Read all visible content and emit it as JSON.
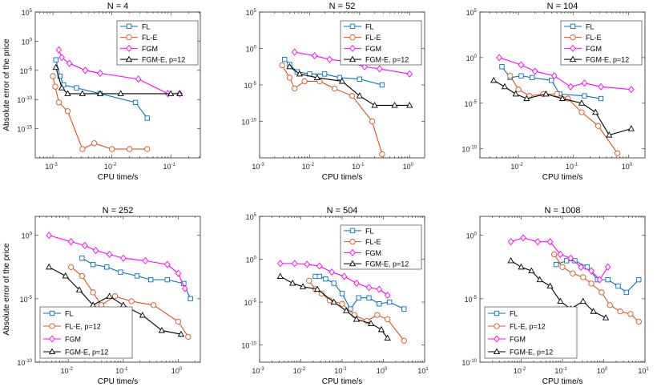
{
  "colors": {
    "FL": "#0072BD",
    "FL-E": "#D95319",
    "FGM": "#FF00FF",
    "FGM-E": "#000000"
  },
  "chart_data": [
    {
      "type": "line",
      "title": "N = 4",
      "xlabel": "CPU time/s",
      "ylabel": "Absolute error of the price",
      "xscale": "log",
      "yscale": "log",
      "xlim_exp": [
        -3.3,
        -0.5
      ],
      "ylim_exp": [
        -20,
        5
      ],
      "xticks": [
        -3,
        -2,
        -1
      ],
      "yticks": [
        -15,
        -10,
        -5,
        0,
        5
      ],
      "legend_position": "top-right",
      "series": [
        {
          "name": "FL",
          "marker": "square",
          "x_exp": [
            -2.95,
            -2.88,
            -2.82,
            -2.6,
            -2.2,
            -1.6,
            -1.4
          ],
          "y_exp": [
            -3.2,
            -6.0,
            -7.5,
            -8.0,
            -9.0,
            -10.5,
            -13.2
          ]
        },
        {
          "name": "FL-E",
          "marker": "circle",
          "x_exp": [
            -3.0,
            -2.96,
            -2.9,
            -2.75,
            -2.5,
            -2.3,
            -2.0,
            -1.7,
            -1.4
          ],
          "y_exp": [
            -6.0,
            -7.8,
            -10.5,
            -12.0,
            -18.5,
            -17.5,
            -18.5,
            -18.5,
            -18.5
          ]
        },
        {
          "name": "FGM",
          "marker": "diamond",
          "x_exp": [
            -2.9,
            -2.85,
            -2.72,
            -2.45,
            -2.2,
            -1.55,
            -1.05,
            -0.85
          ],
          "y_exp": [
            -1.5,
            -2.8,
            -3.8,
            -5.0,
            -5.5,
            -6.5,
            -9.0,
            -9.0
          ]
        },
        {
          "name": "FGM-E, p=12",
          "marker": "triangle",
          "x_exp": [
            -2.95,
            -2.85,
            -2.75,
            -2.5,
            -2.2,
            -1.85,
            -1.0,
            -0.85
          ],
          "y_exp": [
            -4.5,
            -8.0,
            -9.0,
            -9.0,
            -9.0,
            -9.0,
            -9.0,
            -9.0
          ]
        }
      ]
    },
    {
      "type": "line",
      "title": "N = 52",
      "xlabel": "CPU time/s",
      "ylabel": "",
      "xscale": "log",
      "yscale": "log",
      "xlim_exp": [
        -3.0,
        0.3
      ],
      "ylim_exp": [
        -15,
        5
      ],
      "xticks": [
        -3,
        -2,
        -1,
        0
      ],
      "yticks": [
        -10,
        -5,
        0,
        5
      ],
      "legend_position": "top-right",
      "series": [
        {
          "name": "FL",
          "marker": "square",
          "x_exp": [
            -2.5,
            -2.4,
            -2.25,
            -2.0,
            -1.7,
            -1.4,
            -1.0,
            -0.55
          ],
          "y_exp": [
            -1.5,
            -2.2,
            -3.2,
            -3.5,
            -3.5,
            -4.0,
            -4.2,
            -5.0
          ]
        },
        {
          "name": "FL-E",
          "marker": "circle",
          "x_exp": [
            -2.55,
            -2.4,
            -2.3,
            -2.1,
            -1.8,
            -1.5,
            -1.15,
            -0.75,
            -0.55
          ],
          "y_exp": [
            -2.3,
            -4.0,
            -5.5,
            -4.5,
            -4.5,
            -5.5,
            -6.5,
            -10.0,
            -14.5
          ]
        },
        {
          "name": "FGM",
          "marker": "diamond",
          "x_exp": [
            -2.3,
            -1.9,
            -1.6,
            -1.25,
            -0.9,
            -0.6,
            0.0
          ],
          "y_exp": [
            -0.5,
            -1.0,
            -1.5,
            -1.8,
            -2.5,
            -2.8,
            -3.5
          ]
        },
        {
          "name": "FGM-E, p=12",
          "marker": "triangle",
          "x_exp": [
            -2.4,
            -2.2,
            -1.85,
            -1.35,
            -1.0,
            -0.7,
            -0.3,
            0.0
          ],
          "y_exp": [
            -2.5,
            -3.5,
            -4.0,
            -4.5,
            -6.5,
            -7.8,
            -7.8,
            -7.8
          ]
        }
      ]
    },
    {
      "type": "line",
      "title": "N = 104",
      "xlabel": "CPU time/s",
      "ylabel": "",
      "xscale": "log",
      "yscale": "log",
      "xlim_exp": [
        -2.7,
        0.3
      ],
      "ylim_exp": [
        -11,
        5
      ],
      "xticks": [
        -2,
        -1,
        0
      ],
      "yticks": [
        -10,
        -5,
        0,
        5
      ],
      "legend_position": "top-right",
      "series": [
        {
          "name": "FL",
          "marker": "square",
          "x_exp": [
            -2.3,
            -2.15,
            -1.95,
            -1.75,
            -1.4,
            -1.25,
            -0.8,
            -0.5
          ],
          "y_exp": [
            -1.0,
            -2.2,
            -2.0,
            -2.2,
            -2.5,
            -4.0,
            -4.2,
            -4.5
          ]
        },
        {
          "name": "FL-E",
          "marker": "circle",
          "x_exp": [
            -2.15,
            -2.0,
            -1.8,
            -1.55,
            -1.3,
            -1.1,
            -0.85,
            -0.55,
            -0.2
          ],
          "y_exp": [
            -2.0,
            -3.5,
            -4.2,
            -4.0,
            -4.0,
            -4.5,
            -6.0,
            -7.5,
            -10.5
          ]
        },
        {
          "name": "FGM",
          "marker": "diamond",
          "x_exp": [
            -2.35,
            -1.95,
            -1.7,
            -1.35,
            -1.05,
            -0.8,
            -0.5,
            0.05
          ],
          "y_exp": [
            0.0,
            -0.8,
            -1.5,
            -2.0,
            -3.2,
            -2.8,
            -3.2,
            -3.5
          ]
        },
        {
          "name": "FGM-E, p=12",
          "marker": "triangle",
          "x_exp": [
            -2.45,
            -2.25,
            -2.05,
            -1.85,
            -1.5,
            -1.2,
            -0.85,
            -0.6,
            -0.35,
            0.05
          ],
          "y_exp": [
            -2.5,
            -3.2,
            -4.0,
            -4.5,
            -4.0,
            -4.5,
            -5.0,
            -6.0,
            -8.5,
            -7.8
          ]
        }
      ]
    },
    {
      "type": "line",
      "title": "N = 252",
      "xlabel": "CPU time/s",
      "ylabel": "Absolute error of the price",
      "xscale": "log",
      "yscale": "log",
      "xlim_exp": [
        -2.6,
        0.4
      ],
      "ylim_exp": [
        -10,
        1.5
      ],
      "xticks": [
        -2,
        -1,
        0
      ],
      "yticks": [
        -10,
        -5,
        0
      ],
      "legend_position": "bottom-left",
      "series": [
        {
          "name": "FL",
          "marker": "square",
          "x_exp": [
            -1.75,
            -1.55,
            -1.3,
            -1.05,
            -0.75,
            -0.5,
            -0.2,
            0.1,
            0.22
          ],
          "y_exp": [
            -1.8,
            -2.3,
            -2.5,
            -2.9,
            -3.2,
            -3.5,
            -3.5,
            -3.8,
            -5.0
          ]
        },
        {
          "name": "FL-E, p=12",
          "marker": "circle",
          "x_exp": [
            -1.95,
            -1.75,
            -1.55,
            -1.4,
            -1.15,
            -0.85,
            -0.45,
            0.0,
            0.18
          ],
          "y_exp": [
            -2.5,
            -3.2,
            -4.5,
            -5.5,
            -4.8,
            -5.2,
            -5.5,
            -6.8,
            -8.0
          ]
        },
        {
          "name": "FGM",
          "marker": "diamond",
          "x_exp": [
            -2.35,
            -1.95,
            -1.7,
            -1.5,
            -1.25,
            -1.0,
            -0.6,
            -0.2,
            0.0,
            0.12
          ],
          "y_exp": [
            0.0,
            -0.5,
            -0.8,
            -1.2,
            -1.5,
            -1.8,
            -2.0,
            -2.3,
            -3.0,
            -4.2
          ]
        },
        {
          "name": "FGM-E, p=12",
          "marker": "triangle",
          "x_exp": [
            -2.35,
            -2.05,
            -1.8,
            -1.55,
            -1.25,
            -1.0,
            -0.65,
            -0.3,
            0.05
          ],
          "y_exp": [
            -2.5,
            -3.2,
            -4.3,
            -5.5,
            -4.8,
            -5.5,
            -6.3,
            -7.5,
            -7.8
          ]
        }
      ]
    },
    {
      "type": "line",
      "title": "N = 504",
      "xlabel": "CPU time/s",
      "ylabel": "",
      "xscale": "log",
      "yscale": "log",
      "xlim_exp": [
        -3,
        1
      ],
      "ylim_exp": [
        -12,
        5
      ],
      "xticks": [
        -3,
        -2,
        -1,
        0,
        1
      ],
      "yticks": [
        -10,
        -5,
        0,
        5
      ],
      "legend_position": "top-right",
      "series": [
        {
          "name": "FL",
          "marker": "square",
          "x_exp": [
            -1.65,
            -1.55,
            -1.4,
            -1.2,
            -1.0,
            -0.8,
            -0.6,
            -0.35,
            -0.1,
            0.15,
            0.5
          ],
          "y_exp": [
            -2.0,
            -2.0,
            -2.3,
            -2.8,
            -4.0,
            -5.8,
            -4.5,
            -4.5,
            -5.2,
            -5.0,
            -5.8
          ]
        },
        {
          "name": "FL-E",
          "marker": "circle",
          "x_exp": [
            -1.8,
            -1.65,
            -1.5,
            -1.3,
            -1.0,
            -0.7,
            -0.4,
            -0.15,
            0.1,
            0.5
          ],
          "y_exp": [
            -2.5,
            -3.5,
            -4.0,
            -4.8,
            -5.2,
            -6.5,
            -7.2,
            -6.5,
            -7.0,
            -9.5
          ]
        },
        {
          "name": "FGM",
          "marker": "diamond",
          "x_exp": [
            -2.5,
            -2.15,
            -1.85,
            -1.55,
            -1.25,
            -0.95,
            -0.65,
            -0.35,
            -0.1,
            0.1
          ],
          "y_exp": [
            -0.5,
            -0.5,
            -0.6,
            -0.8,
            -1.5,
            -2.0,
            -2.8,
            -3.3,
            -3.5,
            -4.2
          ]
        },
        {
          "name": "FGM-E, p=12",
          "marker": "triangle",
          "x_exp": [
            -2.5,
            -2.2,
            -1.95,
            -1.6,
            -1.2,
            -0.9,
            -0.65,
            -0.3,
            -0.05,
            0.1
          ],
          "y_exp": [
            -2.0,
            -2.8,
            -3.2,
            -3.5,
            -5.0,
            -6.0,
            -7.0,
            -7.5,
            -8.2,
            -9.2
          ]
        }
      ]
    },
    {
      "type": "line",
      "title": "N = 1008",
      "xlabel": "CPU time/s",
      "ylabel": "",
      "xscale": "log",
      "yscale": "log",
      "xlim_exp": [
        -3,
        1
      ],
      "ylim_exp": [
        -10,
        1.5
      ],
      "xticks": [
        -2,
        -1,
        0,
        1
      ],
      "yticks": [
        -10,
        -5,
        0
      ],
      "legend_position": "bottom-left",
      "series": [
        {
          "name": "FL",
          "marker": "square",
          "x_exp": [
            -1.15,
            -0.9,
            -0.7,
            -0.4,
            -0.15,
            0.1,
            0.35,
            0.55,
            0.85
          ],
          "y_exp": [
            -2.3,
            -2.0,
            -2.0,
            -2.5,
            -3.5,
            -3.5,
            -4.0,
            -4.5,
            -3.5
          ]
        },
        {
          "name": "FL-E, p=12",
          "marker": "circle",
          "x_exp": [
            -1.2,
            -1.0,
            -0.75,
            -0.5,
            -0.3,
            -0.05,
            0.15,
            0.4,
            0.65,
            0.85
          ],
          "y_exp": [
            -1.5,
            -2.5,
            -3.0,
            -3.3,
            -3.8,
            -4.5,
            -5.5,
            -6.0,
            -6.2,
            -6.8
          ]
        },
        {
          "name": "FGM",
          "marker": "diamond",
          "x_exp": [
            -2.25,
            -1.95,
            -1.6,
            -1.3,
            -1.05,
            -0.8,
            -0.55,
            -0.3,
            -0.1,
            0.1
          ],
          "y_exp": [
            -0.5,
            -0.2,
            -0.5,
            -0.5,
            -1.5,
            -1.8,
            -2.5,
            -2.8,
            -3.5,
            -2.5
          ]
        },
        {
          "name": "FGM-E, p=12",
          "marker": "triangle",
          "x_exp": [
            -2.25,
            -2.0,
            -1.75,
            -1.55,
            -1.3,
            -1.05,
            -0.8,
            -0.5,
            -0.25,
            0.05
          ],
          "y_exp": [
            -2.0,
            -2.5,
            -2.8,
            -3.5,
            -4.0,
            -5.2,
            -5.8,
            -5.2,
            -6.0,
            -6.5
          ]
        }
      ]
    }
  ]
}
